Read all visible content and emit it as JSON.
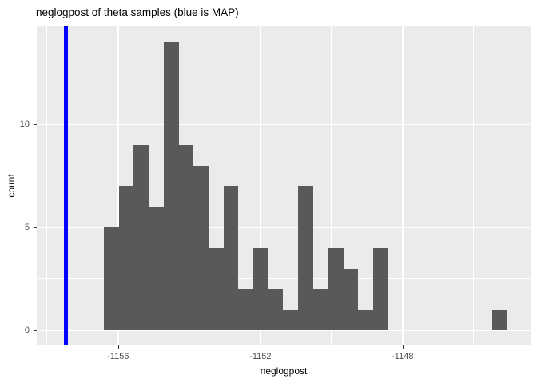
{
  "title": "neglogpost of theta samples (blue is MAP)",
  "chart_data": {
    "type": "bar",
    "subtype": "histogram",
    "title": "neglogpost of theta samples (blue is MAP)",
    "xlabel": "neglogpost",
    "ylabel": "count",
    "x_domain": [
      -1158.29,
      -1144.4
    ],
    "y_domain": [
      -0.74,
      14.81
    ],
    "x_major_ticks": [
      -1156,
      -1152,
      -1148
    ],
    "x_minor_ticks": [
      -1158,
      -1154,
      -1150,
      -1146
    ],
    "y_major_ticks": [
      0,
      5,
      10
    ],
    "y_minor_ticks": [
      2.5,
      7.5,
      12.5
    ],
    "grid": true,
    "legend_position": "none",
    "bin_width": 0.4207,
    "bins": [
      {
        "x0": -1156.4,
        "count": 5
      },
      {
        "x0": -1155.98,
        "count": 7
      },
      {
        "x0": -1155.56,
        "count": 9
      },
      {
        "x0": -1155.14,
        "count": 6
      },
      {
        "x0": -1154.72,
        "count": 14
      },
      {
        "x0": -1154.3,
        "count": 9
      },
      {
        "x0": -1153.88,
        "count": 8
      },
      {
        "x0": -1153.46,
        "count": 4
      },
      {
        "x0": -1153.04,
        "count": 7
      },
      {
        "x0": -1152.62,
        "count": 2
      },
      {
        "x0": -1152.2,
        "count": 4
      },
      {
        "x0": -1151.78,
        "count": 2
      },
      {
        "x0": -1151.36,
        "count": 1
      },
      {
        "x0": -1150.93,
        "count": 7
      },
      {
        "x0": -1150.51,
        "count": 2
      },
      {
        "x0": -1150.09,
        "count": 4
      },
      {
        "x0": -1149.67,
        "count": 3
      },
      {
        "x0": -1149.25,
        "count": 1
      },
      {
        "x0": -1148.83,
        "count": 4
      },
      {
        "x0": -1148.41,
        "count": 0
      },
      {
        "x0": -1147.99,
        "count": 0
      },
      {
        "x0": -1147.57,
        "count": 0
      },
      {
        "x0": -1147.15,
        "count": 0
      },
      {
        "x0": -1146.73,
        "count": 0
      },
      {
        "x0": -1146.31,
        "count": 0
      },
      {
        "x0": -1145.89,
        "count": 0
      },
      {
        "x0": -1145.47,
        "count": 1
      }
    ],
    "map_vline_x": -1157.46,
    "colors": {
      "bar": "#595959",
      "panel": "#EBEBEB",
      "grid": "#FFFFFF",
      "vline": "#0000FF",
      "tick_mark": "#333333",
      "tick_label": "#4D4D4D",
      "axis_title": "#000000",
      "background": "#FFFFFF"
    }
  }
}
